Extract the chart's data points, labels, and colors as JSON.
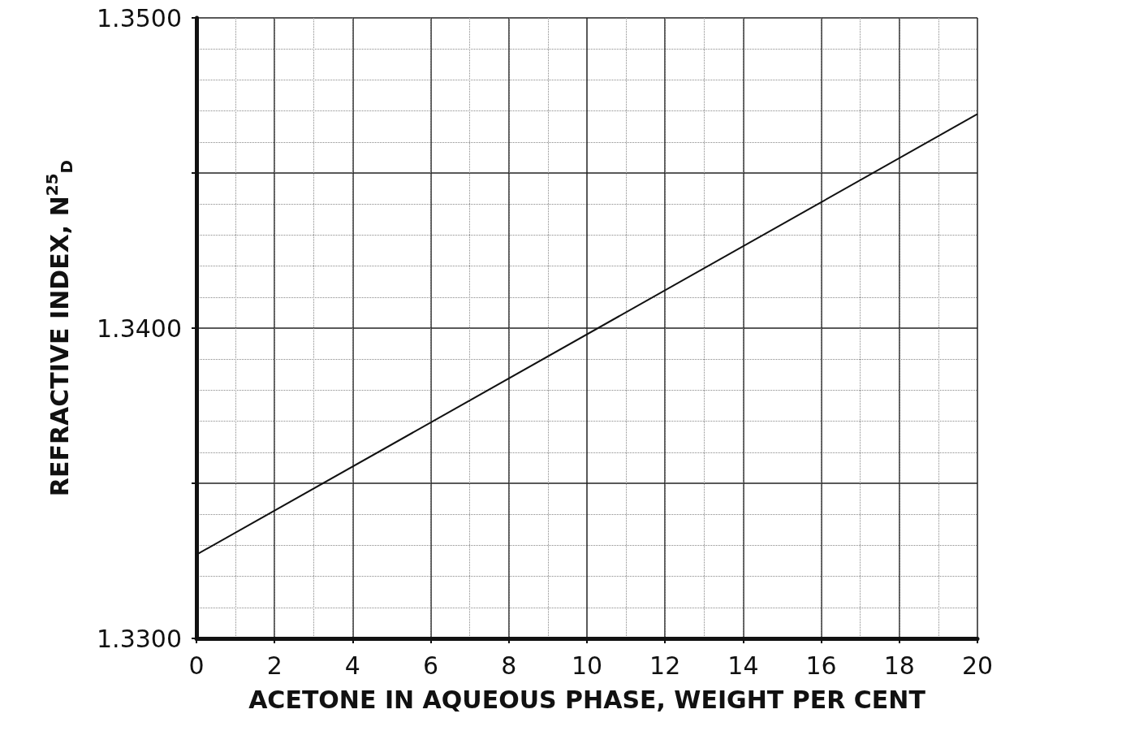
{
  "chart_data": {
    "type": "line",
    "xlabel": "ACETONE IN AQUEOUS PHASE, WEIGHT PER CENT",
    "ylabel": "REFRACTIVE INDEX, N$^{25}$$_{D}$",
    "x": [
      0,
      20
    ],
    "series": [
      {
        "color": "#111111",
        "values": [
          1.3327,
          1.3469
        ]
      }
    ],
    "xlim": [
      0,
      20
    ],
    "xticks": [
      0,
      2,
      4,
      6,
      8,
      10,
      12,
      14,
      16,
      18,
      20
    ],
    "ylim": [
      1.33,
      1.35
    ],
    "yticks": [
      {
        "value": 1.33,
        "label": "1.3300"
      },
      {
        "value": 1.335,
        "label": null
      },
      {
        "value": 1.34,
        "label": "1.3400"
      },
      {
        "value": 1.345,
        "label": null
      },
      {
        "value": 1.35,
        "label": "1.3500"
      }
    ],
    "grid": true,
    "marker": "none",
    "line_style": "solid"
  }
}
